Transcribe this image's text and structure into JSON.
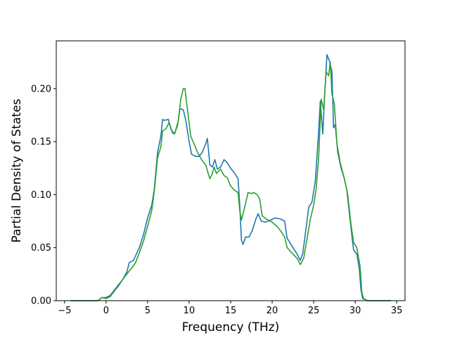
{
  "chart_data": {
    "type": "line",
    "title": "",
    "xlabel": "Frequency (THz)",
    "ylabel": "Partial Density of States",
    "xlim": [
      -6,
      36
    ],
    "ylim": [
      0,
      0.245
    ],
    "xticks": [
      -5,
      0,
      5,
      10,
      15,
      20,
      25,
      30,
      35
    ],
    "xtick_labels": [
      "−5",
      "0",
      "5",
      "10",
      "15",
      "20",
      "25",
      "30",
      "35"
    ],
    "yticks": [
      0,
      0.05,
      0.1,
      0.15,
      0.2
    ],
    "ytick_labels": [
      "0.00",
      "0.05",
      "0.10",
      "0.15",
      "0.20"
    ],
    "grid": false,
    "legend": false,
    "series": [
      {
        "color": "#1f77b4",
        "points": [
          [
            -4.3,
            0
          ],
          [
            -1,
            0
          ],
          [
            -0.5,
            0.003
          ],
          [
            0,
            0.003
          ],
          [
            0.5,
            0.005
          ],
          [
            1,
            0.01
          ],
          [
            1.5,
            0.015
          ],
          [
            2,
            0.02
          ],
          [
            2.5,
            0.027
          ],
          [
            2.8,
            0.036
          ],
          [
            3.3,
            0.038
          ],
          [
            4,
            0.05
          ],
          [
            4.5,
            0.062
          ],
          [
            5,
            0.078
          ],
          [
            5.5,
            0.09
          ],
          [
            5.8,
            0.105
          ],
          [
            6.2,
            0.14
          ],
          [
            6.6,
            0.155
          ],
          [
            6.8,
            0.171
          ],
          [
            7,
            0.17
          ],
          [
            7.5,
            0.171
          ],
          [
            7.8,
            0.162
          ],
          [
            8.2,
            0.157
          ],
          [
            8.6,
            0.165
          ],
          [
            8.9,
            0.181
          ],
          [
            9.3,
            0.18
          ],
          [
            9.6,
            0.17
          ],
          [
            10,
            0.15
          ],
          [
            10.3,
            0.138
          ],
          [
            10.8,
            0.136
          ],
          [
            11.2,
            0.136
          ],
          [
            11.6,
            0.14
          ],
          [
            12,
            0.148
          ],
          [
            12.2,
            0.153
          ],
          [
            12.5,
            0.128
          ],
          [
            12.8,
            0.126
          ],
          [
            13.1,
            0.133
          ],
          [
            13.4,
            0.124
          ],
          [
            13.8,
            0.126
          ],
          [
            14.2,
            0.133
          ],
          [
            14.6,
            0.13
          ],
          [
            15,
            0.125
          ],
          [
            15.5,
            0.12
          ],
          [
            15.9,
            0.115
          ],
          [
            16.1,
            0.09
          ],
          [
            16.3,
            0.057
          ],
          [
            16.5,
            0.053
          ],
          [
            16.8,
            0.06
          ],
          [
            17.2,
            0.06
          ],
          [
            17.6,
            0.066
          ],
          [
            18,
            0.076
          ],
          [
            18.3,
            0.082
          ],
          [
            18.7,
            0.075
          ],
          [
            19.2,
            0.074
          ],
          [
            19.8,
            0.076
          ],
          [
            20.4,
            0.078
          ],
          [
            21,
            0.077
          ],
          [
            21.5,
            0.075
          ],
          [
            21.8,
            0.059
          ],
          [
            22.5,
            0.05
          ],
          [
            23,
            0.044
          ],
          [
            23.4,
            0.038
          ],
          [
            23.7,
            0.045
          ],
          [
            24,
            0.063
          ],
          [
            24.4,
            0.088
          ],
          [
            24.8,
            0.093
          ],
          [
            25.2,
            0.113
          ],
          [
            25.6,
            0.16
          ],
          [
            25.8,
            0.188
          ],
          [
            26.1,
            0.157
          ],
          [
            26.3,
            0.19
          ],
          [
            26.6,
            0.232
          ],
          [
            26.9,
            0.226
          ],
          [
            27.2,
            0.216
          ],
          [
            27.4,
            0.163
          ],
          [
            27.6,
            0.166
          ],
          [
            27.9,
            0.14
          ],
          [
            28.3,
            0.125
          ],
          [
            28.7,
            0.115
          ],
          [
            29,
            0.104
          ],
          [
            29.4,
            0.075
          ],
          [
            29.8,
            0.048
          ],
          [
            30.2,
            0.044
          ],
          [
            30.5,
            0.03
          ],
          [
            30.7,
            0.01
          ],
          [
            30.9,
            0.002
          ],
          [
            31.5,
            0
          ],
          [
            34.3,
            0
          ]
        ]
      },
      {
        "color": "#2ca02c",
        "points": [
          [
            -4.3,
            0
          ],
          [
            -1,
            0
          ],
          [
            -0.5,
            0.003
          ],
          [
            0,
            0.002
          ],
          [
            0.5,
            0.004
          ],
          [
            1,
            0.009
          ],
          [
            1.5,
            0.014
          ],
          [
            2,
            0.02
          ],
          [
            2.5,
            0.025
          ],
          [
            3,
            0.03
          ],
          [
            3.5,
            0.035
          ],
          [
            4,
            0.045
          ],
          [
            4.5,
            0.056
          ],
          [
            5,
            0.07
          ],
          [
            5.5,
            0.085
          ],
          [
            5.8,
            0.103
          ],
          [
            6.2,
            0.135
          ],
          [
            6.6,
            0.145
          ],
          [
            6.8,
            0.16
          ],
          [
            7.2,
            0.162
          ],
          [
            7.6,
            0.168
          ],
          [
            8,
            0.158
          ],
          [
            8.3,
            0.158
          ],
          [
            8.7,
            0.17
          ],
          [
            9,
            0.19
          ],
          [
            9.3,
            0.2
          ],
          [
            9.5,
            0.2
          ],
          [
            9.8,
            0.18
          ],
          [
            10.2,
            0.155
          ],
          [
            10.6,
            0.148
          ],
          [
            11,
            0.14
          ],
          [
            11.5,
            0.133
          ],
          [
            12,
            0.128
          ],
          [
            12.3,
            0.12
          ],
          [
            12.5,
            0.115
          ],
          [
            12.8,
            0.12
          ],
          [
            13,
            0.126
          ],
          [
            13.3,
            0.12
          ],
          [
            13.8,
            0.124
          ],
          [
            14.2,
            0.118
          ],
          [
            14.6,
            0.116
          ],
          [
            15,
            0.108
          ],
          [
            15.5,
            0.104
          ],
          [
            15.9,
            0.102
          ],
          [
            16.1,
            0.085
          ],
          [
            16.3,
            0.076
          ],
          [
            16.6,
            0.085
          ],
          [
            16.9,
            0.095
          ],
          [
            17.1,
            0.102
          ],
          [
            17.5,
            0.101
          ],
          [
            17.8,
            0.102
          ],
          [
            18.2,
            0.1
          ],
          [
            18.5,
            0.096
          ],
          [
            18.8,
            0.08
          ],
          [
            19.3,
            0.077
          ],
          [
            20,
            0.074
          ],
          [
            20.6,
            0.07
          ],
          [
            21,
            0.066
          ],
          [
            21.5,
            0.06
          ],
          [
            21.8,
            0.05
          ],
          [
            22.5,
            0.044
          ],
          [
            23,
            0.04
          ],
          [
            23.4,
            0.034
          ],
          [
            23.8,
            0.04
          ],
          [
            24.2,
            0.058
          ],
          [
            24.6,
            0.077
          ],
          [
            25,
            0.09
          ],
          [
            25.3,
            0.105
          ],
          [
            25.6,
            0.135
          ],
          [
            25.9,
            0.19
          ],
          [
            26.2,
            0.18
          ],
          [
            26.5,
            0.216
          ],
          [
            26.8,
            0.212
          ],
          [
            27,
            0.225
          ],
          [
            27.2,
            0.195
          ],
          [
            27.5,
            0.185
          ],
          [
            27.8,
            0.148
          ],
          [
            28.2,
            0.13
          ],
          [
            28.7,
            0.115
          ],
          [
            29.1,
            0.1
          ],
          [
            29.5,
            0.072
          ],
          [
            29.8,
            0.055
          ],
          [
            30.2,
            0.05
          ],
          [
            30.6,
            0.032
          ],
          [
            30.8,
            0.008
          ],
          [
            31,
            0.002
          ],
          [
            31.5,
            0
          ],
          [
            34.3,
            0
          ]
        ]
      }
    ]
  }
}
